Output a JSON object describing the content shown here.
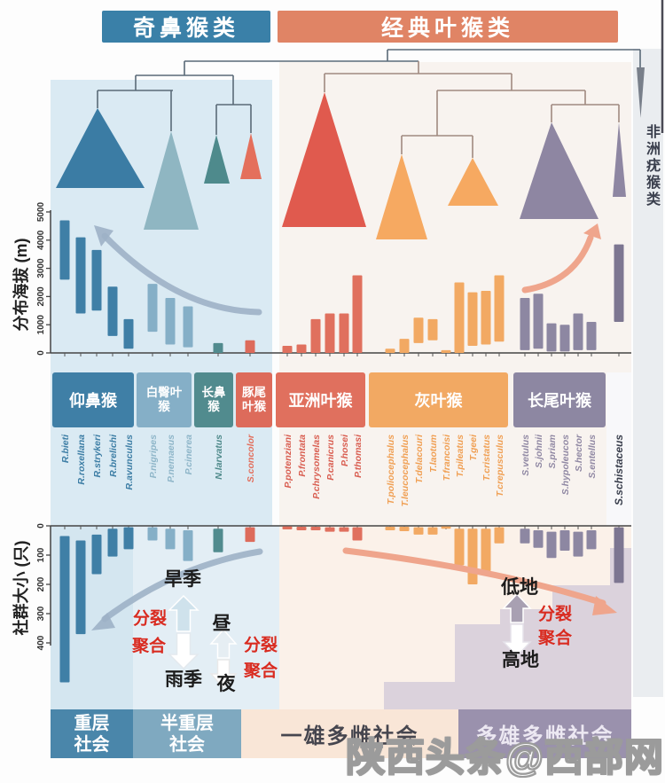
{
  "header": {
    "left_clade": "奇鼻猴类",
    "right_clade": "经典叶猴类"
  },
  "outgroup_label": "非洲疣猴类",
  "watermark": "陕西头条@西部网",
  "groups": [
    {
      "id": "rhinopithecus",
      "label": "仰鼻猴",
      "color": "#3f7fa6",
      "name_color": "#3f7fa6"
    },
    {
      "id": "pygathrix",
      "label": "白臀叶\n猴",
      "color": "#85afc7",
      "name_color": "#8fb6c9"
    },
    {
      "id": "nasalis",
      "label": "长鼻\n猴",
      "color": "#518b8e",
      "name_color": "#4f8a8b"
    },
    {
      "id": "simias",
      "label": "豚尾\n叶猴",
      "color": "#dd6b5b",
      "name_color": "#e2715f"
    },
    {
      "id": "presbytis",
      "label": "亚洲叶猴",
      "color": "#e0705e",
      "name_color": "#d95f52"
    },
    {
      "id": "trachypithecus",
      "label": "灰叶猴",
      "color": "#f2a963",
      "name_color": "#f0a055"
    },
    {
      "id": "semnopithecus",
      "label": "长尾叶猴",
      "color": "#8d87a2",
      "name_color": "#9189a4"
    },
    {
      "id": "schistaceus",
      "label": "",
      "color": "#7d7691",
      "name_color": "#3a3f4d"
    }
  ],
  "chart_data": {
    "elevation_chart": {
      "type": "range-bar",
      "ylabel": "分布海拔 (m)",
      "ylim": [
        0,
        5000
      ],
      "yticks": [
        "5000",
        "4000",
        "3000",
        "2000",
        "1000",
        "0"
      ],
      "grid": false
    },
    "group_size_chart": {
      "type": "range-bar",
      "ylabel": "社群大小 (只)",
      "ylim": [
        0,
        500
      ],
      "yticks": [
        "0",
        "100",
        "200",
        "300",
        "400"
      ],
      "axis_direction": "inverted",
      "grid": false
    },
    "phylogeny": {
      "root_split": [
        "奇鼻猴类",
        "经典叶猴类"
      ],
      "outgroup": "非洲疣猴类"
    },
    "species": [
      {
        "name": "R.bieti",
        "group": "rhinopithecus",
        "elevation_m": [
          2600,
          4700
        ],
        "group_size": [
          35,
          535
        ]
      },
      {
        "name": "R.roxellana",
        "group": "rhinopithecus",
        "elevation_m": [
          1400,
          4100
        ],
        "group_size": [
          50,
          370
        ]
      },
      {
        "name": "R.strykeri",
        "group": "rhinopithecus",
        "elevation_m": [
          1500,
          3650
        ],
        "group_size": [
          30,
          165
        ]
      },
      {
        "name": "R.brelichi",
        "group": "rhinopithecus",
        "elevation_m": [
          600,
          2350
        ],
        "group_size": [
          10,
          105
        ]
      },
      {
        "name": "R.avunculus",
        "group": "rhinopithecus",
        "elevation_m": [
          150,
          1200
        ],
        "group_size": [
          5,
          80
        ]
      },
      {
        "name": "P.nigripes",
        "group": "pygathrix",
        "elevation_m": [
          750,
          2450
        ],
        "group_size": [
          5,
          50
        ]
      },
      {
        "name": "P.nemaeus",
        "group": "pygathrix",
        "elevation_m": [
          300,
          1950
        ],
        "group_size": [
          10,
          80
        ]
      },
      {
        "name": "P.cinerea",
        "group": "pygathrix",
        "elevation_m": [
          200,
          1650
        ],
        "group_size": [
          15,
          120
        ]
      },
      {
        "name": "N.larvatus",
        "group": "nasalis",
        "elevation_m": [
          0,
          350
        ],
        "group_size": [
          10,
          90
        ]
      },
      {
        "name": "S.concolor",
        "group": "simias",
        "elevation_m": [
          0,
          450
        ],
        "group_size": [
          5,
          55
        ]
      },
      {
        "name": "P.potenziani",
        "group": "presbytis",
        "elevation_m": [
          0,
          250
        ],
        "group_size": [
          2,
          12
        ]
      },
      {
        "name": "P.frontata",
        "group": "presbytis",
        "elevation_m": [
          0,
          300
        ],
        "group_size": [
          3,
          15
        ]
      },
      {
        "name": "P.chrysomelas",
        "group": "presbytis",
        "elevation_m": [
          0,
          1200
        ],
        "group_size": [
          3,
          15
        ]
      },
      {
        "name": "P.canicrus",
        "group": "presbytis",
        "elevation_m": [
          0,
          1400
        ],
        "group_size": [
          5,
          20
        ]
      },
      {
        "name": "P.hosei",
        "group": "presbytis",
        "elevation_m": [
          0,
          1400
        ],
        "group_size": [
          5,
          20
        ]
      },
      {
        "name": "P.thomasi",
        "group": "presbytis",
        "elevation_m": [
          0,
          2750
        ],
        "group_size": [
          5,
          50
        ]
      },
      {
        "name": "T.poliocephalus",
        "group": "trachypithecus",
        "elevation_m": [
          0,
          150
        ],
        "group_size": [
          3,
          15
        ]
      },
      {
        "name": "T.leucocephalus",
        "group": "trachypithecus",
        "elevation_m": [
          0,
          500
        ],
        "group_size": [
          3,
          18
        ]
      },
      {
        "name": "T.delacouri",
        "group": "trachypithecus",
        "elevation_m": [
          350,
          1250
        ],
        "group_size": [
          5,
          30
        ]
      },
      {
        "name": "T.laotum",
        "group": "trachypithecus",
        "elevation_m": [
          450,
          1200
        ],
        "group_size": [
          5,
          30
        ]
      },
      {
        "name": "T.francoisi",
        "group": "trachypithecus",
        "elevation_m": [
          0,
          100
        ],
        "group_size": [
          2,
          10
        ]
      },
      {
        "name": "T.pileatus",
        "group": "trachypithecus",
        "elevation_m": [
          0,
          2500
        ],
        "group_size": [
          10,
          135
        ]
      },
      {
        "name": "T.geei",
        "group": "trachypithecus",
        "elevation_m": [
          250,
          2150
        ],
        "group_size": [
          10,
          200
        ]
      },
      {
        "name": "T.cristatus",
        "group": "trachypithecus",
        "elevation_m": [
          300,
          2200
        ],
        "group_size": [
          10,
          155
        ]
      },
      {
        "name": "T.crepusculus",
        "group": "trachypithecus",
        "elevation_m": [
          400,
          2750
        ],
        "group_size": [
          5,
          60
        ]
      },
      {
        "name": "S.vetulus",
        "group": "semnopithecus",
        "elevation_m": [
          100,
          1950
        ],
        "group_size": [
          10,
          60
        ]
      },
      {
        "name": "S.johnii",
        "group": "semnopithecus",
        "elevation_m": [
          150,
          2100
        ],
        "group_size": [
          15,
          75
        ]
      },
      {
        "name": "S.priam",
        "group": "semnopithecus",
        "elevation_m": [
          50,
          1050
        ],
        "group_size": [
          20,
          110
        ]
      },
      {
        "name": "S.hypoleucos",
        "group": "semnopithecus",
        "elevation_m": [
          50,
          1000
        ],
        "group_size": [
          15,
          85
        ]
      },
      {
        "name": "S.hector",
        "group": "semnopithecus",
        "elevation_m": [
          100,
          1400
        ],
        "group_size": [
          20,
          105
        ]
      },
      {
        "name": "S.entellus",
        "group": "semnopithecus",
        "elevation_m": [
          100,
          1100
        ],
        "group_size": [
          15,
          80
        ]
      },
      {
        "name": "S.schistaceus",
        "group": "schistaceus",
        "elevation_m": [
          1100,
          3850
        ],
        "group_size": [
          5,
          195
        ]
      }
    ]
  },
  "annotations": {
    "dry_season": "旱季",
    "rainy_season": "雨季",
    "day": "昼",
    "night": "夜",
    "lowland": "低地",
    "highland": "高地",
    "fission": "分裂",
    "fusion": "聚合"
  },
  "social_bands": [
    {
      "label": "重层\n社会",
      "color": "#4a86aa",
      "text_color": "#ffffff"
    },
    {
      "label": "半重层\n社会",
      "color": "#7fa9c0",
      "text_color": "#ffffff"
    },
    {
      "label": "一雄多雌社会",
      "color": "#f9e6d7",
      "text_color": "#46464f"
    },
    {
      "label": "多雄多雌社会",
      "color": "#9a91ad",
      "text_color": "#ece8f2"
    }
  ]
}
